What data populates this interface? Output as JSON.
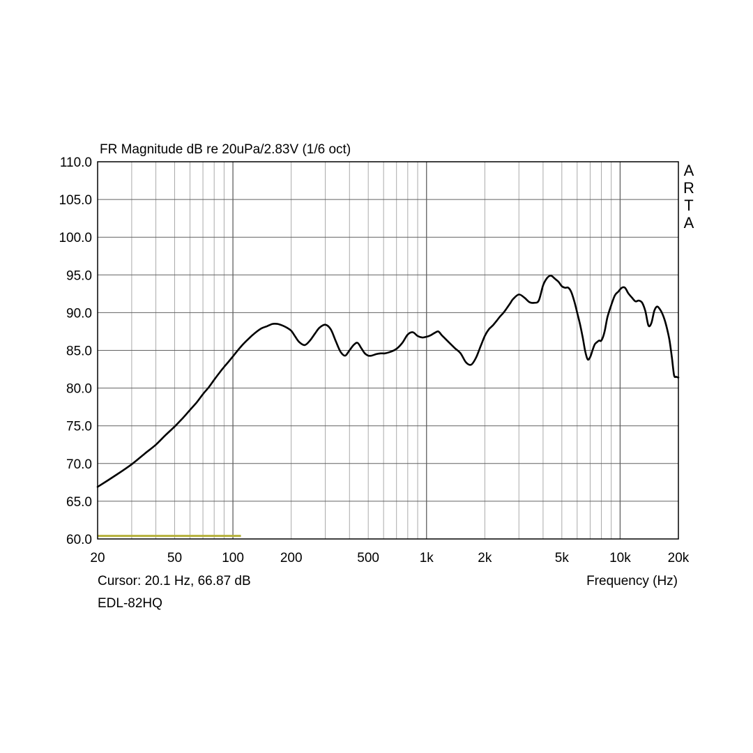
{
  "chart_data": {
    "type": "line",
    "title": "FR Magnitude dB re 20uPa/2.83V (1/6 oct)",
    "xlabel": "Frequency (Hz)",
    "ylabel": "",
    "x_scale": "log",
    "xlim": [
      20,
      20000
    ],
    "ylim": [
      60,
      110
    ],
    "grid": true,
    "y_ticks": [
      "110.0",
      "105.0",
      "100.0",
      "95.0",
      "90.0",
      "85.0",
      "80.0",
      "75.0",
      "70.0",
      "65.0",
      "60.0"
    ],
    "x_tick_labels": [
      {
        "value": 20,
        "label": "20"
      },
      {
        "value": 50,
        "label": "50"
      },
      {
        "value": 100,
        "label": "100"
      },
      {
        "value": 200,
        "label": "200"
      },
      {
        "value": 500,
        "label": "500"
      },
      {
        "value": 1000,
        "label": "1k"
      },
      {
        "value": 2000,
        "label": "2k"
      },
      {
        "value": 5000,
        "label": "5k"
      },
      {
        "value": 10000,
        "label": "10k"
      },
      {
        "value": 20000,
        "label": "20k"
      }
    ],
    "brand_label": "ARTA",
    "cursor_text": "Cursor: 20.1 Hz, 66.87 dB",
    "device_name": "EDL-82HQ",
    "colors": {
      "curve": "#000000",
      "grid": "#a0a0a0",
      "grid_major": "#606060",
      "marker": "#b5b03a"
    },
    "marker_range": {
      "from": 20,
      "to": 110,
      "y": 60.4
    },
    "series": [
      {
        "x": [
          20,
          25,
          30,
          35,
          40,
          45,
          50,
          55,
          60,
          65,
          70,
          75,
          80,
          85,
          90,
          95,
          100,
          110,
          120,
          130,
          140,
          150,
          160,
          170,
          180,
          190,
          200,
          210,
          220,
          235,
          250,
          265,
          280,
          300,
          320,
          340,
          360,
          380,
          400,
          420,
          440,
          460,
          480,
          500,
          520,
          550,
          580,
          610,
          650,
          700,
          750,
          800,
          850,
          900,
          950,
          1000,
          1050,
          1100,
          1150,
          1200,
          1300,
          1400,
          1500,
          1600,
          1700,
          1800,
          1900,
          2000,
          2100,
          2200,
          2300,
          2400,
          2500,
          2600,
          2700,
          2800,
          3000,
          3200,
          3400,
          3600,
          3800,
          4000,
          4200,
          4400,
          4600,
          4800,
          5000,
          5200,
          5400,
          5600,
          5800,
          6000,
          6200,
          6400,
          6600,
          6800,
          7000,
          7200,
          7400,
          7600,
          7800,
          8000,
          8300,
          8600,
          9000,
          9400,
          9800,
          10200,
          10600,
          11000,
          11500,
          12000,
          12500,
          13000,
          13500,
          14000,
          14500,
          15000,
          15500,
          16000,
          16500,
          17000,
          17500,
          18000,
          18500,
          19000,
          19500,
          20000
        ],
        "values": [
          66.9,
          68.5,
          69.9,
          71.3,
          72.5,
          73.8,
          74.9,
          76.0,
          77.1,
          78.1,
          79.2,
          80.1,
          81.1,
          82.0,
          82.8,
          83.5,
          84.2,
          85.5,
          86.5,
          87.3,
          87.9,
          88.2,
          88.5,
          88.5,
          88.3,
          88.0,
          87.6,
          86.8,
          86.1,
          85.7,
          86.3,
          87.2,
          88.0,
          88.4,
          87.8,
          86.2,
          84.8,
          84.3,
          85.0,
          85.7,
          86.0,
          85.3,
          84.6,
          84.3,
          84.3,
          84.5,
          84.6,
          84.6,
          84.8,
          85.2,
          86.0,
          87.1,
          87.4,
          86.9,
          86.7,
          86.8,
          87.0,
          87.3,
          87.5,
          87.0,
          86.1,
          85.3,
          84.6,
          83.4,
          83.1,
          84.0,
          85.5,
          86.9,
          87.8,
          88.3,
          88.9,
          89.5,
          90.0,
          90.6,
          91.2,
          91.8,
          92.4,
          92.0,
          91.4,
          91.3,
          91.6,
          93.6,
          94.6,
          94.9,
          94.5,
          94.1,
          93.5,
          93.3,
          93.3,
          92.7,
          91.5,
          90.0,
          88.5,
          86.8,
          84.9,
          83.8,
          84.1,
          85.0,
          85.8,
          86.1,
          86.3,
          86.3,
          87.4,
          89.4,
          91.0,
          92.3,
          92.8,
          93.3,
          93.3,
          92.6,
          92.0,
          91.5,
          91.6,
          91.3,
          90.2,
          88.3,
          88.6,
          90.2,
          90.8,
          90.5,
          89.9,
          89.0,
          87.8,
          86.3,
          84.1,
          81.7,
          81.5,
          81.4
        ]
      }
    ]
  }
}
